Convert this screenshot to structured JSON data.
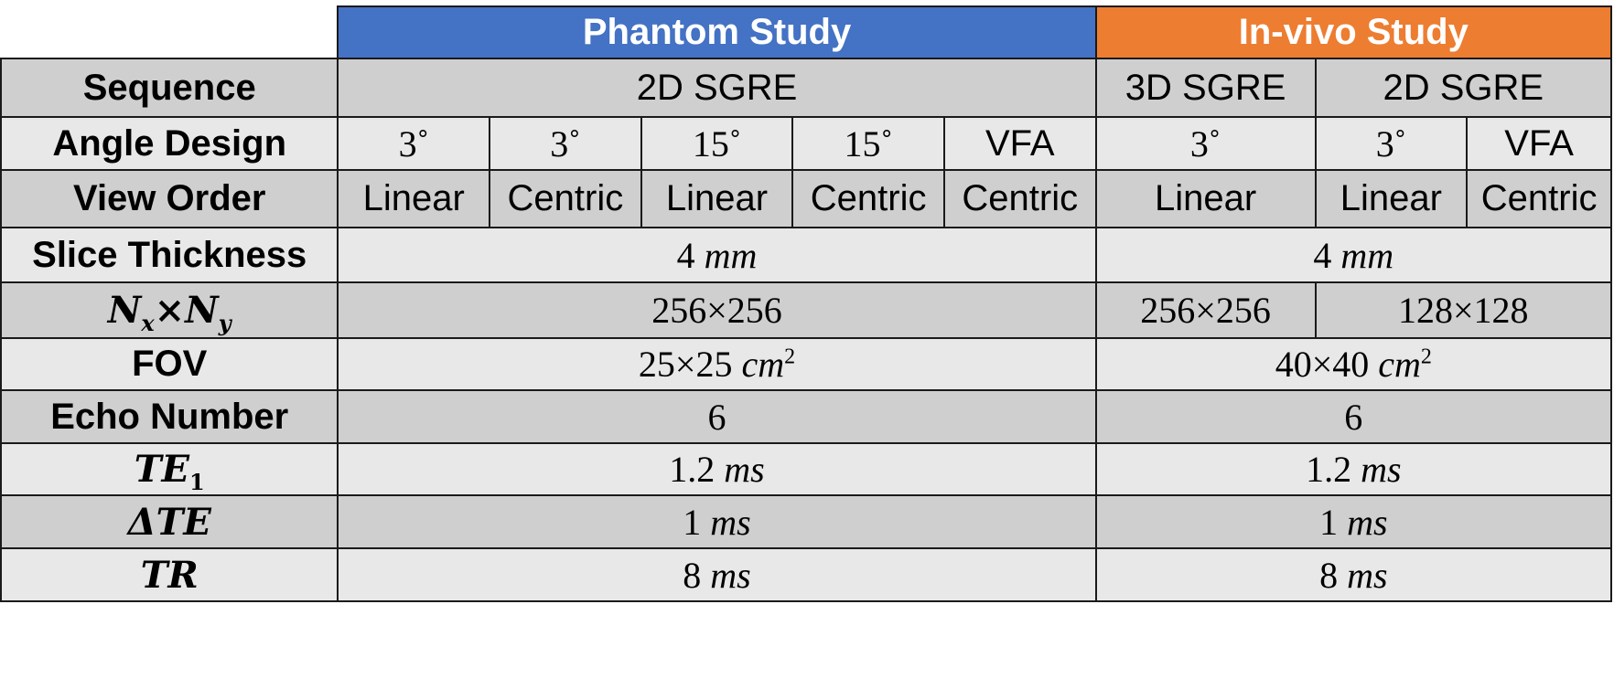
{
  "headers": {
    "phantom": "Phantom Study",
    "invivo": "In-vivo Study"
  },
  "rows": {
    "sequence": {
      "label": "Sequence",
      "phantom": "2D SGRE",
      "invivo_a": "3D SGRE",
      "invivo_b": "2D SGRE"
    },
    "angle_design": {
      "label": "Angle Design",
      "cells": [
        "3˚",
        "3˚",
        "15˚",
        "15˚",
        "VFA",
        "3˚",
        "3˚",
        "VFA"
      ]
    },
    "view_order": {
      "label": "View Order",
      "cells": [
        "Linear",
        "Centric",
        "Linear",
        "Centric",
        "Centric",
        "Linear",
        "Linear",
        "Centric"
      ]
    },
    "slice_thickness": {
      "label": "Slice Thickness",
      "phantom_num": "4",
      "phantom_unit": "mm",
      "invivo_num": "4",
      "invivo_unit": "mm"
    },
    "matrix": {
      "label_N": "N",
      "label_x": "x",
      "label_times": "×",
      "label_y": "y",
      "phantom": "256×256",
      "invivo_a": "256×256",
      "invivo_b": "128×128"
    },
    "fov": {
      "label": "FOV",
      "phantom_num": "25×25",
      "phantom_unit": "cm",
      "phantom_exp": "2",
      "invivo_num": "40×40",
      "invivo_unit": "cm",
      "invivo_exp": "2"
    },
    "echo_number": {
      "label": "Echo Number",
      "phantom": "6",
      "invivo": "6"
    },
    "te1": {
      "label_main": "TE",
      "label_sub": "1",
      "phantom_num": "1.2",
      "phantom_unit": "ms",
      "invivo_num": "1.2",
      "invivo_unit": "ms"
    },
    "delta_te": {
      "label": "ΔTE",
      "phantom_num": "1",
      "phantom_unit": "ms",
      "invivo_num": "1",
      "invivo_unit": "ms"
    },
    "tr": {
      "label": "TR",
      "phantom_num": "8",
      "phantom_unit": "ms",
      "invivo_num": "8",
      "invivo_unit": "ms"
    }
  },
  "colors": {
    "phantom_header": "#4472c4",
    "invivo_header": "#ed7d31",
    "row_dark": "#cfcfcf",
    "row_light": "#e8e8e8"
  }
}
